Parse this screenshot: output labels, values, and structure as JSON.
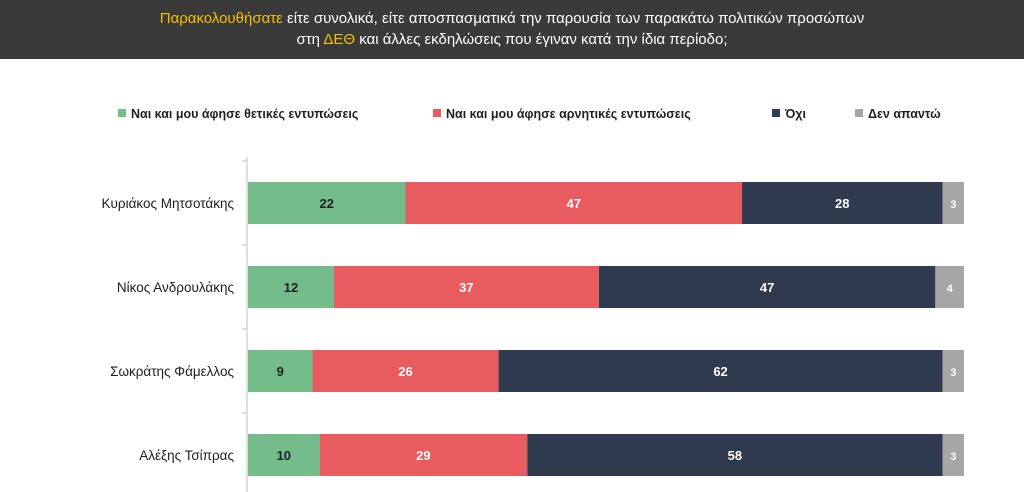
{
  "question": {
    "line1_highlight": "Παρακολουθήσατε",
    "line1_rest": " είτε συνολικά, είτε αποσπασματικά την παρουσία των παρακάτω πολιτικών προσώπων",
    "line2_pre": "στη ",
    "line2_highlight": "ΔΕΘ",
    "line2_rest": " και άλλες εκδηλώσεις που έγιναν κατά την ίδια περίοδο;"
  },
  "colors": {
    "header_bg": "#3a3a3a",
    "highlight": "#f2c200",
    "positive": "#74bd8a",
    "negative": "#e85c60",
    "no": "#2f3a4e",
    "na": "#a6a6a6"
  },
  "chart_data": {
    "type": "bar",
    "orientation": "horizontal",
    "stacked": true,
    "legend_position": "top",
    "categories": [
      "Κυριάκος Μητσοτάκης",
      "Νίκος Ανδρουλάκης",
      "Σωκράτης Φάμελλος",
      "Αλέξης Τσίπρας"
    ],
    "series": [
      {
        "name": "Ναι και μου άφησε θετικές εντυπώσεις",
        "values": [
          22,
          12,
          9,
          10
        ],
        "color": "#74bd8a"
      },
      {
        "name": "Ναι και μου άφησε αρνητικές εντυπώσεις",
        "values": [
          47,
          37,
          26,
          29
        ],
        "color": "#e85c60"
      },
      {
        "name": "Όχι",
        "values": [
          28,
          47,
          62,
          58
        ],
        "color": "#2f3a4e"
      },
      {
        "name": "Δεν απαντώ",
        "values": [
          3,
          4,
          3,
          3
        ],
        "color": "#a6a6a6"
      }
    ],
    "xlim": [
      0,
      100
    ]
  }
}
